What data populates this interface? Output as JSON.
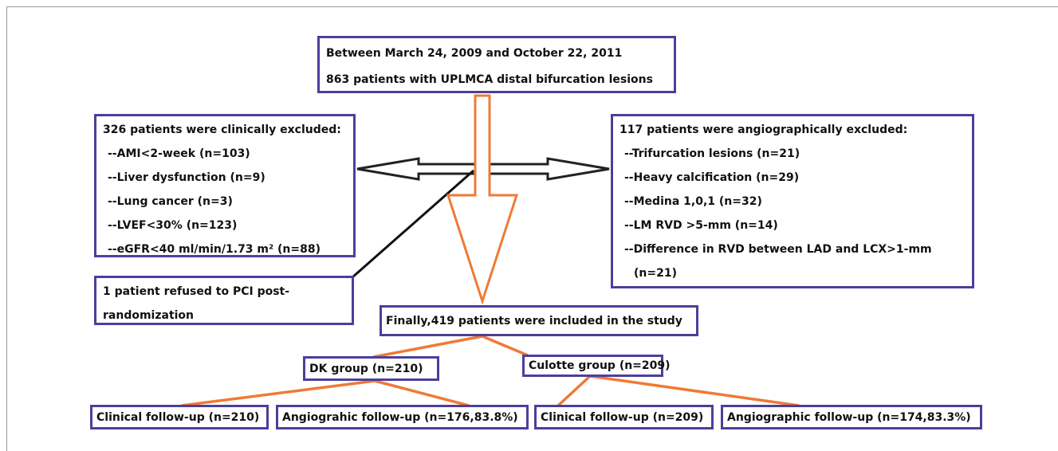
{
  "nodes": [
    {
      "id": "enrolled",
      "lines": [
        "Between March 24, 2009 and October 22, 2011",
        "863 patients with UPLMCA distal bifurcation lesions"
      ]
    },
    {
      "id": "clinical-excluded",
      "lines": [
        "326 patients were clinically excluded:",
        "--AMI<2-week (n=103)",
        "--Liver dysfunction (n=9)",
        "--Lung cancer (n=3)",
        "--LVEF<30% (n=123)",
        "--eGFR<40 ml/min/1.73 m² (n=88)"
      ]
    },
    {
      "id": "angio-excluded",
      "lines": [
        "117 patients were angiographically excluded:",
        "--Trifurcation lesions (n=21)",
        "--Heavy calcification (n=29)",
        "--Medina 1,0,1 (n=32)",
        "--LM RVD >5-mm (n=14)",
        "--Difference in RVD between LAD and  LCX>1-mm",
        "(n=21)"
      ]
    },
    {
      "id": "refused",
      "lines": [
        "1 patient refused to PCI post-",
        "randomization"
      ]
    },
    {
      "id": "included",
      "lines": [
        "Finally,419  patients were included in the study"
      ]
    },
    {
      "id": "dk",
      "lines": [
        "DK group (n=210)"
      ]
    },
    {
      "id": "culotte",
      "lines": [
        "Culotte group (n=209)"
      ]
    },
    {
      "id": "dk-clinical",
      "lines": [
        "Clinical follow-up (n=210)"
      ]
    },
    {
      "id": "dk-angio",
      "lines": [
        "Angiograhic follow-up (n=176,83.8%)"
      ]
    },
    {
      "id": "culotte-clinical",
      "lines": [
        "Clinical follow-up (n=209)"
      ]
    },
    {
      "id": "culotte-angio",
      "lines": [
        "Angiographic follow-up (n=174,83.3%)"
      ]
    }
  ]
}
